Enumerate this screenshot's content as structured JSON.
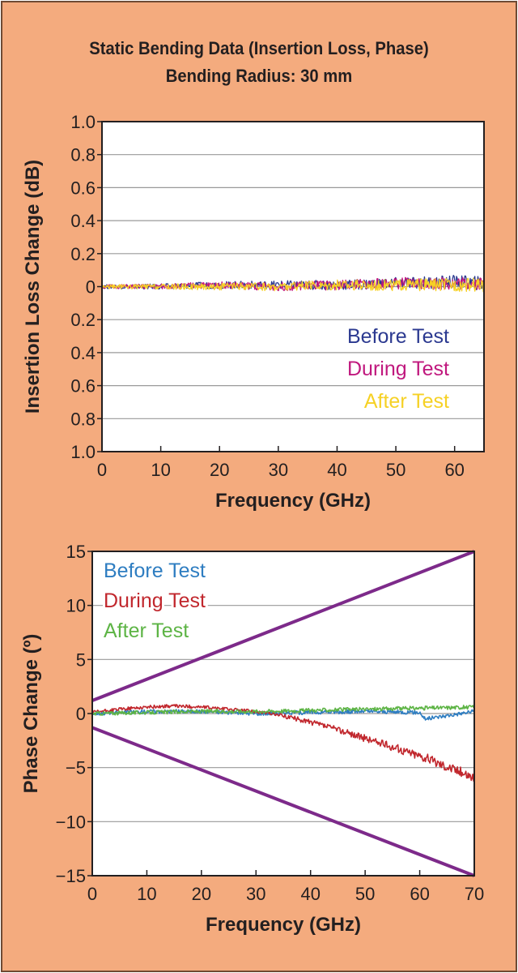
{
  "title_line1": "Static Bending Data (Insertion Loss, Phase)",
  "title_line2": "Bending Radius: 30 mm",
  "chart_data": [
    {
      "type": "line",
      "xlabel": "Frequency (GHz)",
      "ylabel": "Insertion Loss Change (dB)",
      "xlim": [
        0,
        65
      ],
      "ylim": [
        -1.0,
        1.0
      ],
      "xticks": [
        0,
        10,
        20,
        30,
        40,
        50,
        60
      ],
      "yticks": [
        1.0,
        0.8,
        0.6,
        0.4,
        0.2,
        0,
        -0.2,
        -0.4,
        -0.6,
        -0.8,
        -1.0
      ],
      "ytick_labels": [
        "1.0",
        "0.8",
        "0.6",
        "0.4",
        "0.2",
        "0",
        "0.2",
        "0.4",
        "0.6",
        "0.8",
        "1.0"
      ],
      "grid": true,
      "legend_position": "right",
      "series": [
        {
          "name": "Before Test",
          "color": "#2b3990",
          "x": [
            0,
            10,
            20,
            30,
            40,
            50,
            60,
            65
          ],
          "y": [
            0,
            0,
            0.01,
            0.01,
            0.01,
            0.02,
            0.03,
            0.02
          ]
        },
        {
          "name": "During Test",
          "color": "#c0187e",
          "x": [
            0,
            10,
            20,
            30,
            40,
            50,
            60,
            65
          ],
          "y": [
            0,
            0,
            0.01,
            0,
            0.01,
            0.02,
            0.02,
            0.02
          ]
        },
        {
          "name": "After Test",
          "color": "#f6d125",
          "x": [
            0,
            10,
            20,
            30,
            40,
            50,
            60,
            65
          ],
          "y": [
            0,
            0,
            0,
            0,
            0.01,
            0.01,
            0.01,
            0.01
          ]
        }
      ]
    },
    {
      "type": "line",
      "xlabel": "Frequency (GHz)",
      "ylabel": "Phase Change (º)",
      "xlim": [
        0,
        70
      ],
      "ylim": [
        -15,
        15
      ],
      "xticks": [
        0,
        10,
        20,
        30,
        40,
        50,
        60,
        70
      ],
      "yticks": [
        15,
        10,
        5,
        0,
        -5,
        -10,
        -15
      ],
      "ytick_labels": [
        "15",
        "10",
        "5",
        "0",
        "−5",
        "−10",
        "−15"
      ],
      "grid": true,
      "legend_position": "top-left",
      "series": [
        {
          "name": "Before Test",
          "color": "#2e7dc1",
          "x": [
            0,
            10,
            20,
            30,
            40,
            50,
            60,
            61,
            70
          ],
          "y": [
            0,
            0.2,
            0.2,
            0,
            0.1,
            0.2,
            0.1,
            -0.5,
            0.2
          ]
        },
        {
          "name": "During Test",
          "color": "#c1272d",
          "x": [
            0,
            5,
            10,
            15,
            20,
            25,
            30,
            35,
            40,
            45,
            50,
            55,
            60,
            65,
            70
          ],
          "y": [
            0.1,
            0.4,
            0.6,
            0.7,
            0.6,
            0.4,
            0.2,
            -0.2,
            -0.8,
            -1.5,
            -2.3,
            -3.1,
            -3.9,
            -4.9,
            -5.9
          ]
        },
        {
          "name": "After Test",
          "color": "#5db445",
          "x": [
            0,
            10,
            20,
            30,
            40,
            50,
            60,
            70
          ],
          "y": [
            0,
            0.1,
            0.2,
            0.2,
            0.3,
            0.4,
            0.5,
            0.6
          ]
        }
      ],
      "limit_lines": [
        {
          "color": "#7d2a8a",
          "x": [
            0,
            70
          ],
          "y": [
            1.2,
            15
          ]
        },
        {
          "color": "#7d2a8a",
          "x": [
            0,
            70
          ],
          "y": [
            -1.3,
            -15
          ]
        }
      ]
    }
  ]
}
